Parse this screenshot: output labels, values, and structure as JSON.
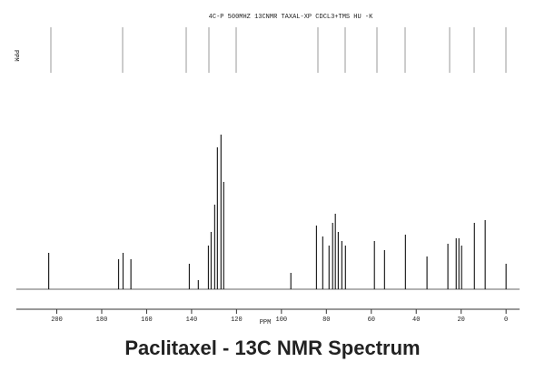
{
  "chart_data": {
    "type": "spectrum",
    "title": "Paclitaxel - 13C NMR Spectrum",
    "header": "4C-P 500MHZ  13CNMR  TAXAL-XP  CDCL3+TMS  HU -K",
    "side_label": "PPM",
    "x_label": "PPM",
    "x": [
      203.6,
      172.5,
      170.5,
      167.0,
      141.0,
      137.0,
      132.5,
      131.3,
      129.7,
      128.5,
      126.9,
      125.7,
      95.8,
      84.4,
      81.6,
      78.8,
      77.2,
      76.0,
      74.7,
      73.1,
      71.5,
      58.6,
      54.1,
      44.8,
      35.2,
      25.9,
      22.2,
      21.0,
      19.8,
      14.1,
      9.3,
      0.0
    ],
    "values": [
      40,
      33,
      40,
      33,
      28,
      10,
      48,
      63,
      93,
      156,
      170,
      118,
      18,
      70,
      58,
      48,
      73,
      83,
      63,
      53,
      48,
      53,
      43,
      60,
      36,
      50,
      56,
      56,
      48,
      73,
      76,
      28
    ],
    "color": "#222222",
    "xlim": [
      218,
      -6
    ],
    "ylim": [
      0,
      175
    ],
    "xticks": [
      200,
      180,
      160,
      140,
      120,
      100,
      80,
      60,
      40,
      20,
      0
    ]
  }
}
